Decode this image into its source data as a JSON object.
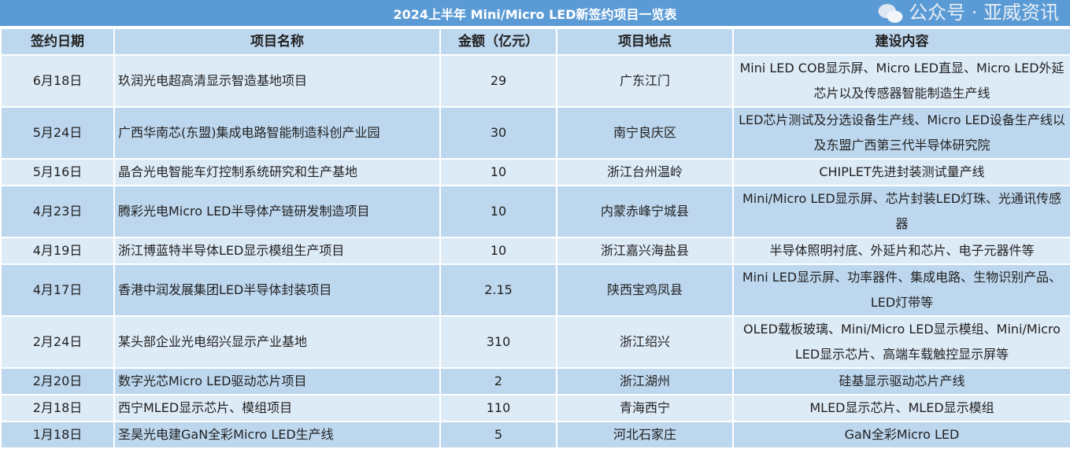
{
  "title": "2024上半年 Mini/Micro   LED新签约项目一览表",
  "columns": [
    "签约日期",
    "项目名称",
    "金额（亿元）",
    "项目地点",
    "建设内容"
  ],
  "rows": [
    {
      "date": "6月18日",
      "name": "玖润光电超高清显示智造基地项目",
      "amount": "29",
      "location": "广东江门",
      "content": "Mini LED COB显示屏、Micro LED直显、Micro LED外延芯片以及传感器智能制造生产线"
    },
    {
      "date": "5月24日",
      "name": "广西华南芯(东盟)集成电路智能制造科创产业园",
      "amount": "30",
      "location": "南宁良庆区",
      "content": "LED芯片测试及分选设备生产线、Micro LED设备生产线以及东盟广西第三代半导体研究院"
    },
    {
      "date": "5月16日",
      "name": "晶合光电智能车灯控制系统研究和生产基地",
      "amount": "10",
      "location": "浙江台州温岭",
      "content": "CHIPLET先进封装测试量产线"
    },
    {
      "date": "4月23日",
      "name": "腾彩光电Micro LED半导体产链研发制造项目",
      "amount": "10",
      "location": "内蒙赤峰宁城县",
      "content": "Mini/Micro LED显示屏、芯片封装LED灯珠、光通讯传感器"
    },
    {
      "date": "4月19日",
      "name": "浙江博蓝特半导体LED显示模组生产项目",
      "amount": "10",
      "location": "浙江嘉兴海盐县",
      "content": "半导体照明衬底、外延片和芯片、电子元器件等"
    },
    {
      "date": "4月17日",
      "name": "香港中润发展集团LED半导体封装项目",
      "amount": "2.15",
      "location": "陕西宝鸡凤县",
      "content": "Mini LED显示屏、功率器件、集成电路、生物识别产品、LED灯带等"
    },
    {
      "date": "2月24日",
      "name": "某头部企业光电绍兴显示产业基地",
      "amount": "310",
      "location": "浙江绍兴",
      "content": "OLED载板玻璃、Mini/Micro LED显示模组、Mini/Micro LED显示芯片、高端车载触控显示屏等"
    },
    {
      "date": "2月20日",
      "name": "数字光芯Micro LED驱动芯片项目",
      "amount": "2",
      "location": "浙江湖州",
      "content": "硅基显示驱动芯片产线"
    },
    {
      "date": "2月18日",
      "name": "西宁MLED显示芯片、模组项目",
      "amount": "110",
      "location": "青海西宁",
      "content": "MLED显示芯片、MLED显示模组"
    },
    {
      "date": "1月18日",
      "name": "圣昊光电建GaN全彩Micro LED生产线",
      "amount": "5",
      "location": "河北石家庄",
      "content": "GaN全彩Micro LED"
    }
  ],
  "watermark": "公众号 · 亚威资讯",
  "colors": {
    "title_bg": "#5b9bd5",
    "row_light": "#ddebf7",
    "row_dark": "#bdd7ee"
  }
}
